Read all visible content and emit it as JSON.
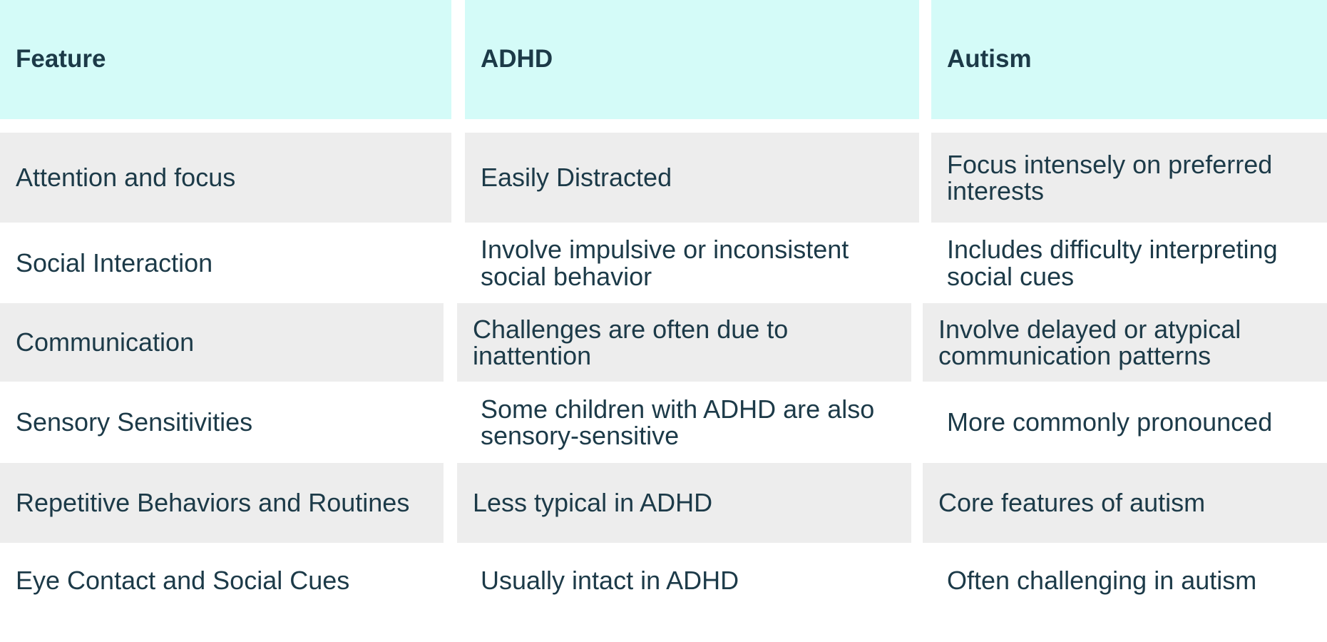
{
  "table": {
    "header": [
      "Feature",
      "ADHD",
      "Autism"
    ],
    "rows": [
      [
        "Attention and focus",
        "Easily Distracted",
        "Focus intensely on preferred interests"
      ],
      [
        "Social Interaction",
        "Involve impulsive or inconsistent social behavior",
        "Includes difficulty interpreting social cues"
      ],
      [
        "Communication",
        "Challenges are often due to inattention",
        "Involve delayed or atypical communication patterns"
      ],
      [
        "Sensory Sensitivities",
        "Some children with ADHD are also sensory-sensitive",
        "More commonly pronounced"
      ],
      [
        "Repetitive Behaviors and Routines",
        "Less typical in ADHD",
        "Core features of autism"
      ],
      [
        "Eye Contact and Social Cues",
        "Usually intact in ADHD",
        "Often challenging in autism"
      ]
    ]
  }
}
